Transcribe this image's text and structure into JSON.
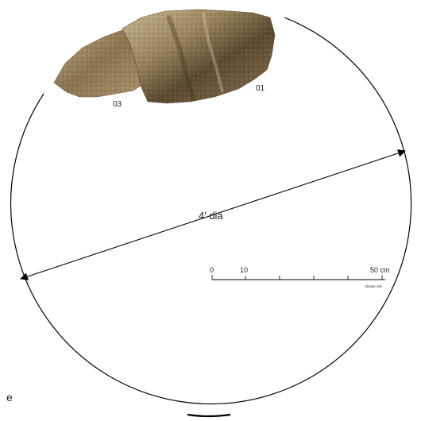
{
  "figure": {
    "fragment_labels": {
      "right": "01",
      "left": "03"
    },
    "diameter_label": "4' dia",
    "scale_bar": {
      "ticks": [
        "0",
        "10",
        "50 cm"
      ],
      "credit": "Dessin ML"
    },
    "panel_letter": "e",
    "colors": {
      "outline": "#000000",
      "stone_light": "#c2b08a",
      "stone_mid": "#8f7a55",
      "stone_dark": "#4e3f28"
    }
  }
}
